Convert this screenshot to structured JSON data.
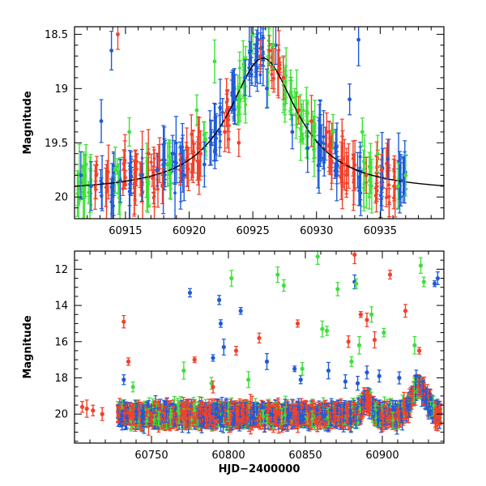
{
  "chart_data": [
    {
      "type": "scatter",
      "panel": "top",
      "ylabel": "Magnitude",
      "xlabel": "",
      "xlim": [
        60911,
        60940
      ],
      "ylim": [
        20.2,
        18.43
      ],
      "y_inverted": true,
      "xticks": [
        60915,
        60920,
        60925,
        60930,
        60935
      ],
      "yticks": [
        18.5,
        19,
        19.5,
        20
      ],
      "ytick_labels": [
        "18.5",
        "19",
        "19.5",
        "20"
      ],
      "colors": {
        "blue": "#1e5bd8",
        "green": "#3ee03a",
        "red": "#f2412a",
        "model": "#000000"
      },
      "model_curve": {
        "name": "",
        "t0": 60925.8,
        "baseline_mag": 19.96,
        "peak_mag": 18.72,
        "width_days": 3.3
      },
      "series": [
        {
          "color": "blue",
          "x": [
            60911.5,
            60912.3,
            60913.1,
            60913.9,
            60914.6,
            60916.3,
            60917.5,
            60918.7,
            60919.6,
            60921.2,
            60922.4,
            60923.6,
            60924.4,
            60925.4,
            60926.1,
            60926.8,
            60928.1,
            60929.3,
            60930.4,
            60931.6,
            60932.6,
            60933.3,
            60935.6,
            60936.8
          ],
          "y": [
            19.8,
            19.9,
            19.3,
            18.65,
            19.85,
            19.8,
            19.75,
            19.6,
            19.8,
            19.7,
            19.4,
            19.1,
            18.9,
            18.55,
            19.0,
            18.6,
            19.4,
            19.55,
            19.5,
            19.7,
            19.1,
            18.55,
            19.65,
            19.85
          ]
        },
        {
          "color": "green",
          "x": [
            60911.9,
            60914.2,
            60915.3,
            60918.3,
            60920.6,
            60922.0,
            60924.0,
            60925.0,
            60926.6,
            60929.8,
            60931.3,
            60933.6,
            60934.8,
            60936.4,
            60937.0
          ],
          "y": [
            19.7,
            19.75,
            19.4,
            19.7,
            19.2,
            18.75,
            19.1,
            18.5,
            18.6,
            19.45,
            19.4,
            19.4,
            19.6,
            19.9,
            19.8
          ]
        },
        {
          "color": "red",
          "x": [
            60912.7,
            60914.4,
            60915.8,
            60916.8,
            60917.9,
            60919.3,
            60920.9,
            60922.8,
            60923.9,
            60925.6,
            60926.3,
            60927.4,
            60928.6,
            60929.6,
            60930.8,
            60932.2,
            60933.9,
            60935.1,
            60936.1
          ],
          "y": [
            19.8,
            18.5,
            19.85,
            19.6,
            19.9,
            19.75,
            19.6,
            19.4,
            19.5,
            18.7,
            18.65,
            18.9,
            19.2,
            19.3,
            19.4,
            19.7,
            19.8,
            19.75,
            19.9
          ]
        }
      ]
    },
    {
      "type": "scatter",
      "panel": "bottom",
      "ylabel": "Magnitude",
      "xlabel": "HJD−2400000",
      "xlim": [
        60700,
        60940
      ],
      "ylim": [
        21.6,
        11.0
      ],
      "y_inverted": true,
      "xticks": [
        60750,
        60800,
        60850,
        60900
      ],
      "yticks": [
        12,
        14,
        16,
        18,
        20
      ],
      "colors": {
        "blue": "#1e5bd8",
        "green": "#3ee03a",
        "red": "#f2412a"
      },
      "band": {
        "x_start": 60728,
        "x_end": 60938,
        "mean": 20.05,
        "spread": 0.45
      },
      "series": [
        {
          "color": "blue",
          "x": [
            60732,
            60775,
            60790,
            60794,
            60795,
            60797,
            60808,
            60825,
            60843,
            60847,
            60865,
            60876,
            60882,
            60884,
            60890,
            60898,
            60911,
            60922,
            60934,
            60936
          ],
          "y": [
            18.1,
            13.3,
            16.9,
            13.7,
            15.0,
            16.3,
            14.3,
            17.1,
            17.5,
            18.1,
            17.6,
            18.2,
            12.7,
            18.3,
            17.7,
            17.9,
            18.0,
            17.9,
            12.8,
            12.5
          ]
        },
        {
          "color": "green",
          "x": [
            60738,
            60771,
            60789,
            60802,
            60813,
            60832,
            60836,
            60848,
            60858,
            60861,
            60864,
            60871,
            60880,
            60883,
            60885,
            60893,
            60901,
            60921,
            60925,
            60927
          ],
          "y": [
            18.5,
            17.6,
            18.3,
            12.5,
            18.1,
            12.3,
            12.9,
            17.5,
            11.3,
            15.3,
            15.4,
            13.1,
            17.1,
            12.8,
            16.2,
            14.5,
            15.5,
            16.2,
            11.8,
            12.7
          ]
        },
        {
          "color": "red",
          "x": [
            60705,
            60708,
            60712,
            60718,
            60732,
            60735,
            60778,
            60790,
            60805,
            60820,
            60845,
            60878,
            60882,
            60886,
            60890,
            60895,
            60905,
            60915,
            60924
          ],
          "y": [
            19.6,
            19.7,
            19.8,
            20.0,
            14.9,
            17.1,
            17.0,
            18.5,
            16.5,
            15.8,
            15.0,
            16.0,
            11.2,
            14.5,
            14.8,
            15.9,
            12.3,
            14.3,
            16.5
          ]
        }
      ]
    }
  ]
}
